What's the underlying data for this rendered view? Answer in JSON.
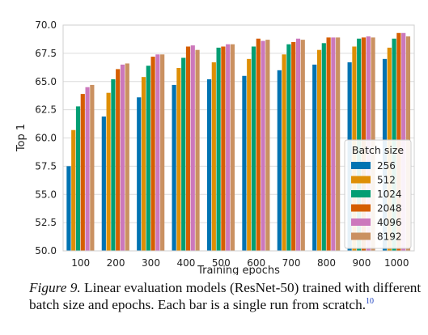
{
  "chart_data": {
    "type": "bar",
    "title": "",
    "xlabel": "Training epochs",
    "ylabel": "Top 1",
    "ylim": [
      50.0,
      70.0
    ],
    "yticks": [
      "50.0",
      "52.5",
      "55.0",
      "57.5",
      "60.0",
      "62.5",
      "65.0",
      "67.5",
      "70.0"
    ],
    "grid": "horizontal",
    "categories": [
      "100",
      "200",
      "300",
      "400",
      "500",
      "600",
      "700",
      "800",
      "900",
      "1000"
    ],
    "legend": {
      "title": "Batch size",
      "placement": "lower-right"
    },
    "series": [
      {
        "name": "256",
        "color": "#0173b2",
        "values": [
          57.5,
          61.9,
          63.6,
          64.7,
          65.2,
          65.5,
          66.0,
          66.5,
          66.7,
          67.0
        ]
      },
      {
        "name": "512",
        "color": "#de8f05",
        "values": [
          60.7,
          64.0,
          65.4,
          66.2,
          66.7,
          67.0,
          67.4,
          67.8,
          68.1,
          68.0
        ]
      },
      {
        "name": "1024",
        "color": "#029e73",
        "values": [
          62.8,
          65.2,
          66.4,
          67.1,
          68.0,
          68.1,
          68.3,
          68.4,
          68.8,
          68.8
        ]
      },
      {
        "name": "2048",
        "color": "#d55e00",
        "values": [
          63.9,
          66.1,
          67.2,
          68.1,
          68.1,
          68.8,
          68.5,
          68.9,
          68.9,
          69.3
        ]
      },
      {
        "name": "4096",
        "color": "#cc78bc",
        "values": [
          64.5,
          66.5,
          67.4,
          68.2,
          68.3,
          68.6,
          68.8,
          68.9,
          69.0,
          69.3
        ]
      },
      {
        "name": "8192",
        "color": "#ca9161",
        "values": [
          64.7,
          66.6,
          67.4,
          67.8,
          68.3,
          68.7,
          68.7,
          68.9,
          68.9,
          69.0
        ]
      }
    ]
  },
  "caption": {
    "label": "Figure 9.",
    "text": "Linear evaluation models (ResNet-50) trained with different batch size and epochs. Each bar is a single run from scratch.",
    "footnote": "10"
  }
}
